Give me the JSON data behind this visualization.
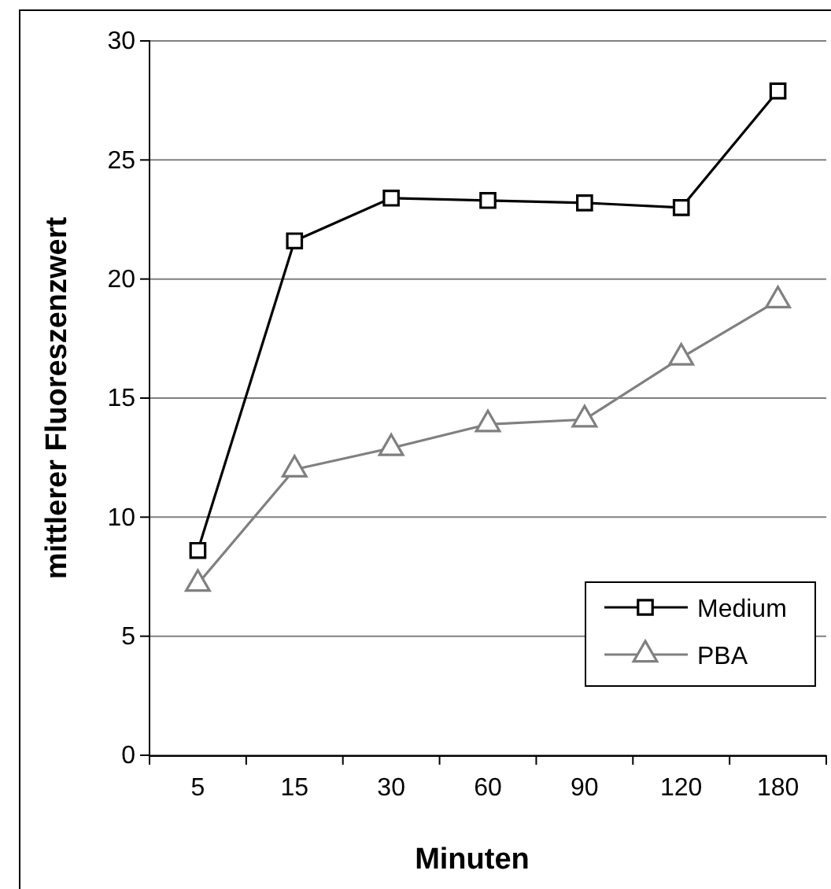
{
  "chart_data": {
    "type": "line",
    "xlabel": "Minuten",
    "ylabel": "mittlerer Fluoreszenzwert",
    "categories": [
      "5",
      "15",
      "30",
      "60",
      "90",
      "120",
      "180"
    ],
    "series": [
      {
        "name": "Medium",
        "color": "#000000",
        "marker": "square",
        "values": [
          8.6,
          21.6,
          23.4,
          23.3,
          23.2,
          23.0,
          27.9
        ]
      },
      {
        "name": "PBA",
        "color": "#808080",
        "marker": "triangle",
        "values": [
          7.2,
          12.0,
          12.9,
          13.9,
          14.1,
          16.7,
          19.1
        ]
      }
    ],
    "ylim": [
      0,
      30
    ],
    "yticks": [
      0,
      5,
      10,
      15,
      20,
      25,
      30
    ],
    "grid": "y",
    "legend": "bottom right",
    "line_style": "solid"
  }
}
